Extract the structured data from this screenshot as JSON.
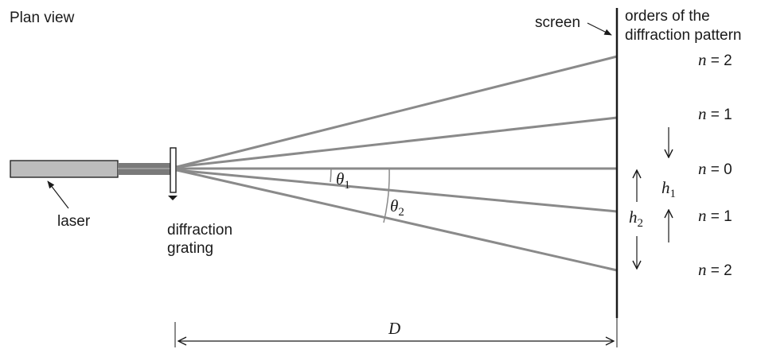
{
  "title": "Plan view",
  "labels": {
    "screen": "screen",
    "orders_line1": "orders of the",
    "orders_line2": "diffraction pattern",
    "laser": "laser",
    "grating_line1": "diffraction",
    "grating_line2": "grating",
    "distance": "D"
  },
  "orders": [
    {
      "var": "n",
      "eq": " = 2"
    },
    {
      "var": "n",
      "eq": " = 1"
    },
    {
      "var": "n",
      "eq": " = 0"
    },
    {
      "var": "n",
      "eq": " = 1"
    },
    {
      "var": "n",
      "eq": " = 2"
    }
  ],
  "angles": [
    {
      "sym": "θ",
      "sub": "1"
    },
    {
      "sym": "θ",
      "sub": "2"
    }
  ],
  "heights": [
    {
      "sym": "h",
      "sub": "1"
    },
    {
      "sym": "h",
      "sub": "2"
    }
  ],
  "colors": {
    "beam": "#8a8a8a",
    "laser_body": "#bdbdbd",
    "laser_beam_core": "#7a7a7a",
    "ink": "#1a1a1a"
  }
}
